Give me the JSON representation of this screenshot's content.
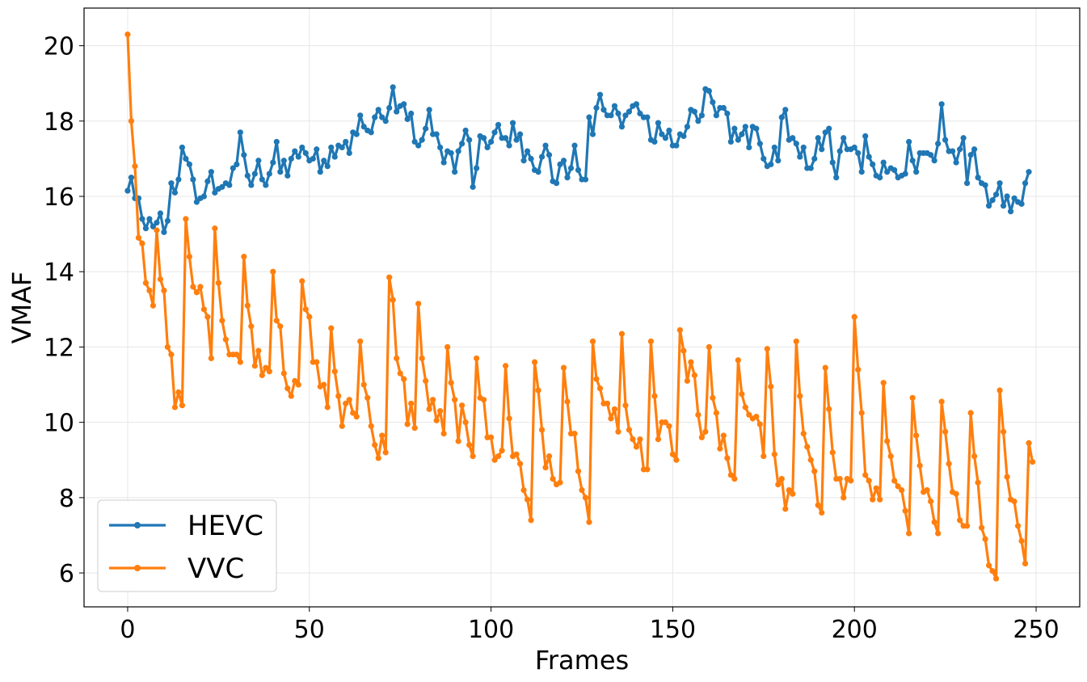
{
  "chart_data": {
    "type": "line",
    "xlabel": "Frames",
    "ylabel": "VMAF",
    "xlim": [
      -12,
      262
    ],
    "ylim": [
      5.1,
      21.0
    ],
    "xticks": [
      0,
      50,
      100,
      150,
      200,
      250
    ],
    "yticks": [
      6,
      8,
      10,
      12,
      14,
      16,
      18,
      20
    ],
    "grid": true,
    "legend_position": "lower-left",
    "markers": true,
    "series": [
      {
        "name": "HEVC",
        "color": "#1f77b4",
        "values": [
          16.15,
          16.5,
          15.95,
          15.95,
          15.4,
          15.15,
          15.4,
          15.2,
          15.3,
          15.55,
          15.05,
          15.35,
          16.35,
          16.1,
          16.45,
          17.3,
          17.0,
          16.85,
          16.45,
          15.85,
          15.95,
          16.0,
          16.4,
          16.65,
          16.1,
          16.2,
          16.25,
          16.35,
          16.3,
          16.75,
          16.85,
          17.7,
          17.1,
          16.55,
          16.3,
          16.6,
          16.95,
          16.45,
          16.3,
          16.6,
          16.9,
          17.45,
          16.65,
          16.95,
          16.55,
          17.0,
          17.2,
          17.05,
          17.3,
          17.15,
          16.95,
          17.0,
          17.25,
          16.65,
          16.95,
          16.8,
          17.3,
          17.05,
          17.35,
          17.3,
          17.45,
          17.15,
          17.7,
          17.65,
          18.15,
          17.85,
          17.75,
          17.7,
          18.1,
          18.3,
          18.1,
          18.0,
          18.35,
          18.9,
          18.25,
          18.4,
          18.45,
          18.05,
          18.2,
          17.45,
          17.35,
          17.5,
          17.8,
          18.3,
          17.65,
          17.65,
          17.3,
          16.9,
          17.2,
          17.15,
          16.65,
          17.2,
          17.4,
          17.75,
          17.5,
          16.25,
          16.75,
          17.6,
          17.55,
          17.3,
          17.45,
          17.7,
          17.9,
          17.55,
          17.55,
          17.35,
          17.95,
          17.5,
          17.65,
          16.95,
          17.2,
          17.0,
          16.7,
          16.65,
          17.05,
          17.35,
          17.1,
          16.4,
          16.35,
          16.85,
          16.95,
          16.5,
          16.75,
          17.35,
          16.7,
          16.45,
          16.45,
          18.1,
          17.65,
          18.35,
          18.7,
          18.3,
          18.15,
          18.15,
          18.4,
          18.2,
          17.85,
          18.15,
          18.25,
          18.4,
          18.45,
          18.2,
          18.1,
          18.1,
          17.5,
          17.45,
          17.95,
          17.65,
          17.55,
          17.75,
          17.35,
          17.35,
          17.65,
          17.6,
          17.85,
          18.3,
          18.25,
          18.0,
          18.15,
          18.85,
          18.8,
          18.5,
          18.15,
          18.35,
          18.35,
          18.2,
          17.45,
          17.8,
          17.5,
          17.65,
          17.85,
          17.3,
          17.85,
          17.8,
          17.4,
          17.0,
          16.8,
          16.85,
          17.3,
          16.95,
          18.1,
          18.3,
          17.5,
          17.55,
          17.4,
          17.05,
          17.3,
          16.75,
          16.75,
          17.0,
          17.55,
          17.25,
          17.7,
          17.8,
          16.9,
          16.5,
          17.2,
          17.55,
          17.25,
          17.25,
          17.3,
          17.15,
          16.65,
          17.6,
          17.05,
          16.85,
          16.55,
          16.5,
          16.9,
          16.65,
          16.75,
          16.7,
          16.5,
          16.55,
          16.6,
          17.45,
          16.95,
          16.65,
          17.15,
          17.15,
          17.15,
          17.1,
          16.95,
          17.4,
          18.45,
          17.5,
          17.2,
          17.2,
          16.9,
          17.25,
          17.55,
          16.35,
          17.1,
          17.25,
          16.5,
          16.35,
          16.3,
          15.75,
          15.9,
          16.05,
          16.35,
          15.75,
          16.0,
          15.6,
          15.95,
          15.85,
          15.8,
          16.35,
          16.65
        ]
      },
      {
        "name": "VVC",
        "color": "#ff7f0e",
        "values": [
          20.3,
          18.0,
          16.8,
          14.9,
          14.75,
          13.7,
          13.5,
          13.1,
          15.1,
          13.8,
          13.5,
          12.0,
          11.8,
          10.4,
          10.8,
          10.45,
          15.4,
          14.4,
          13.6,
          13.45,
          13.6,
          13.0,
          12.8,
          11.7,
          15.15,
          13.7,
          12.7,
          12.2,
          11.8,
          11.8,
          11.8,
          11.6,
          14.4,
          13.1,
          12.55,
          11.5,
          11.9,
          11.25,
          11.45,
          11.35,
          14.0,
          12.7,
          12.55,
          11.3,
          10.9,
          10.7,
          11.1,
          11.0,
          13.75,
          13.0,
          12.8,
          11.6,
          11.6,
          10.95,
          11.0,
          10.4,
          12.5,
          11.35,
          10.7,
          9.9,
          10.5,
          10.6,
          10.25,
          10.15,
          12.15,
          11.0,
          10.65,
          9.9,
          9.4,
          9.05,
          9.65,
          9.2,
          13.85,
          13.25,
          11.7,
          11.3,
          11.15,
          9.95,
          10.5,
          9.85,
          13.15,
          11.7,
          11.1,
          10.35,
          10.6,
          10.05,
          10.3,
          9.7,
          12.0,
          11.05,
          10.6,
          9.5,
          10.45,
          10.0,
          9.4,
          9.1,
          11.7,
          10.65,
          10.6,
          9.6,
          9.6,
          9.0,
          9.1,
          9.25,
          11.5,
          10.1,
          9.1,
          9.15,
          8.9,
          8.2,
          7.95,
          7.4,
          11.6,
          10.85,
          9.8,
          8.8,
          9.1,
          8.5,
          8.35,
          8.4,
          11.45,
          10.55,
          9.7,
          9.7,
          8.7,
          8.2,
          8.0,
          7.35,
          12.15,
          11.15,
          10.9,
          10.5,
          10.5,
          10.1,
          10.35,
          9.75,
          12.35,
          10.45,
          9.8,
          9.55,
          9.35,
          9.55,
          8.75,
          8.75,
          12.15,
          10.7,
          9.55,
          10.0,
          10.0,
          9.9,
          9.15,
          9.0,
          12.45,
          11.9,
          11.1,
          11.6,
          11.25,
          10.2,
          9.6,
          9.75,
          12.0,
          10.65,
          10.25,
          9.3,
          9.65,
          9.05,
          8.6,
          8.5,
          11.65,
          10.75,
          10.4,
          10.2,
          10.1,
          10.15,
          9.95,
          9.1,
          11.95,
          10.95,
          9.15,
          8.35,
          8.5,
          7.7,
          8.2,
          8.1,
          12.15,
          10.7,
          9.7,
          9.35,
          9.0,
          8.7,
          7.8,
          7.6,
          11.45,
          10.35,
          9.2,
          8.5,
          8.5,
          8.0,
          8.5,
          8.45,
          12.8,
          11.4,
          10.25,
          8.6,
          8.45,
          7.95,
          8.25,
          7.95,
          11.05,
          9.5,
          9.1,
          8.45,
          8.3,
          8.2,
          7.65,
          7.05,
          10.65,
          9.65,
          8.85,
          8.15,
          8.2,
          7.9,
          7.35,
          7.05,
          10.55,
          9.75,
          8.9,
          8.15,
          8.1,
          7.4,
          7.25,
          7.25,
          10.25,
          9.1,
          8.4,
          7.2,
          6.9,
          6.2,
          6.05,
          5.85,
          10.85,
          9.75,
          8.55,
          7.95,
          7.9,
          7.25,
          6.85,
          6.25,
          9.45,
          8.95
        ]
      }
    ]
  }
}
